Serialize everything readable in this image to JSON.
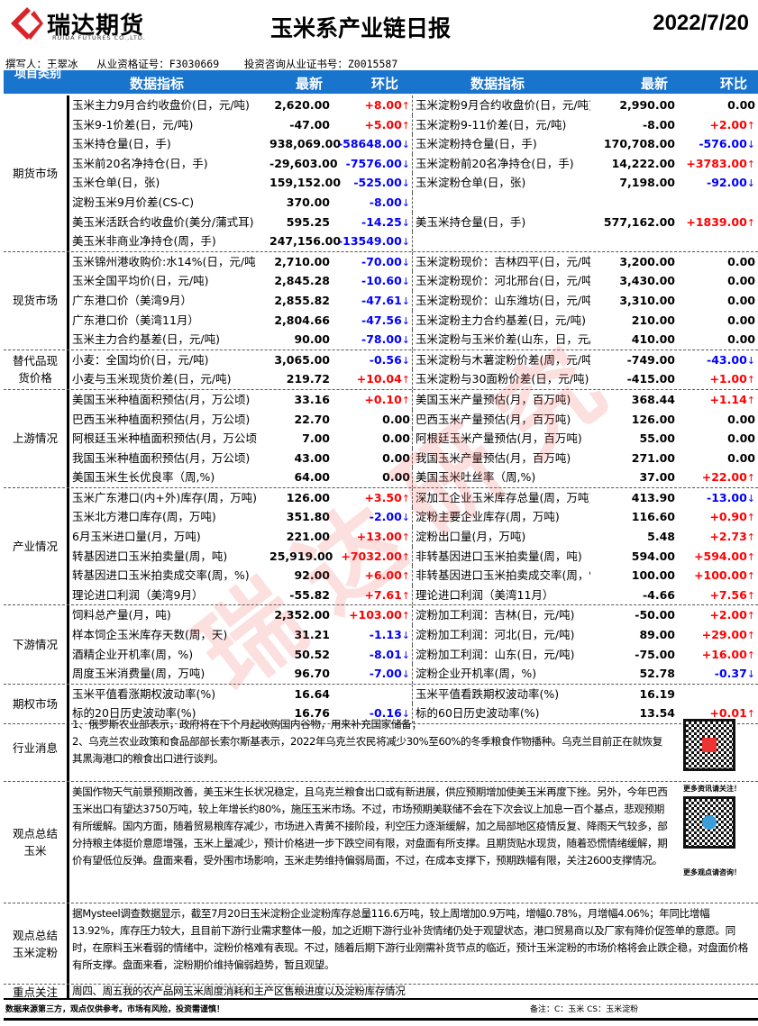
{
  "header": {
    "brand": "瑞达期货",
    "brand_en": "RUIDA FUTURES CO.,LTD.",
    "title": "玉米系产业链日报",
    "date": "2022/7/20",
    "watermark": "瑞达研究"
  },
  "author_line": "撰写人：王翠冰   从业资格证号：F3030669    投资咨询从业证书号：Z0015587",
  "table_header": {
    "category": "项目类别",
    "indicator": "数据指标",
    "latest": "最新",
    "change": "环比"
  },
  "colors": {
    "header_bg": "#1874cd",
    "up": "#ff0000",
    "down": "#0000ff"
  },
  "sections": [
    {
      "name": "期货市场",
      "rows": [
        [
          [
            "玉米主力9月合约收盘价(日，元/吨)",
            "2,620.00",
            "+8.00",
            "up"
          ],
          [
            "玉米淀粉9月合约收盘价(日，元/吨)",
            "2,990.00",
            "0.00",
            "none"
          ]
        ],
        [
          [
            "玉米9-1价差(日，元/吨)",
            "-47.00",
            "+5.00",
            "up"
          ],
          [
            "玉米淀粉9-11价差(日，元/吨)",
            "-8.00",
            "+2.00",
            "up"
          ]
        ],
        [
          [
            "玉米持仓量(日，手)",
            "938,069.00",
            "-58648.00",
            "down"
          ],
          [
            "玉米淀粉持仓量(日，手)",
            "170,708.00",
            "-576.00",
            "down"
          ]
        ],
        [
          [
            "玉米前20名净持仓(日，手)",
            "-29,603.00",
            "-7576.00",
            "down"
          ],
          [
            "玉米淀粉前20名净持仓(日，手)",
            "14,222.00",
            "+3783.00",
            "up"
          ]
        ],
        [
          [
            "玉米仓单(日，张)",
            "159,152.00",
            "-525.00",
            "down"
          ],
          [
            "玉米淀粉仓单(日，张)",
            "7,198.00",
            "-92.00",
            "down"
          ]
        ],
        [
          [
            "淀粉玉米9月价差(CS-C)",
            "370.00",
            "-8.00",
            "down"
          ],
          [
            "",
            "",
            "",
            ""
          ]
        ],
        [
          [
            "美玉米活跃合约收盘价(美分/蒲式耳)",
            "595.25",
            "-14.25",
            "down"
          ],
          [
            "美玉米持仓量(日，手)",
            "577,162.00",
            "+1839.00",
            "up"
          ]
        ],
        [
          [
            "美玉米非商业净持仓(周，手)",
            "247,156.00",
            "-13549.00",
            "down"
          ],
          [
            "",
            "",
            "",
            ""
          ]
        ]
      ]
    },
    {
      "name": "现货市场",
      "rows": [
        [
          [
            "玉米锦州港收购价:水14%(日，元/吨",
            "2,710.00",
            "-70.00",
            "down"
          ],
          [
            "玉米淀粉现价：吉林四平(日，元/吨)",
            "3,200.00",
            "0.00",
            "none"
          ]
        ],
        [
          [
            "玉米全国平均价(日，元/吨)",
            "2,845.28",
            "-10.60",
            "down"
          ],
          [
            "玉米淀粉现价：河北邢台(日，元/吨)",
            "3,430.00",
            "0.00",
            "none"
          ]
        ],
        [
          [
            "广东港口价（美湾9月）",
            "2,855.82",
            "-47.61",
            "down"
          ],
          [
            "玉米淀粉现价：山东潍坊(日，元/吨)",
            "3,310.00",
            "0.00",
            "none"
          ]
        ],
        [
          [
            "广东港口价（美湾11月）",
            "2,804.66",
            "-47.56",
            "down"
          ],
          [
            "玉米淀粉主力合约基差(日，元/吨)",
            "210.00",
            "0.00",
            "none"
          ]
        ],
        [
          [
            "玉米主力合约基差(日，元/吨)",
            "90.00",
            "-78.00",
            "down"
          ],
          [
            "玉米淀粉与玉米价差(山东，日，元/吨",
            "410.00",
            "0.00",
            "none"
          ]
        ]
      ]
    },
    {
      "name": "替代品现货价格",
      "rows": [
        [
          [
            "小麦：全国均价(日，元/吨)",
            "3,065.00",
            "-0.56",
            "down"
          ],
          [
            "玉米淀粉与木薯淀粉价差(周，元/吨)",
            "-749.00",
            "-43.00",
            "down"
          ]
        ],
        [
          [
            "小麦与玉米现货价差(日，元/吨)",
            "219.72",
            "+10.04",
            "up"
          ],
          [
            "玉米淀粉与30面粉价差(日，元/吨)",
            "-415.00",
            "+1.00",
            "up"
          ]
        ]
      ]
    },
    {
      "name": "上游情况",
      "rows": [
        [
          [
            "美国玉米种植面积预估(月，万公顷)",
            "33.16",
            "+0.10",
            "up"
          ],
          [
            "美国玉米产量预估(月，百万吨)",
            "368.44",
            "+1.14",
            "up"
          ]
        ],
        [
          [
            "巴西玉米种植面积预估(月，万公顷)",
            "22.70",
            "0.00",
            "none"
          ],
          [
            "巴西玉米产量预估(月，百万吨)",
            "126.00",
            "0.00",
            "none"
          ]
        ],
        [
          [
            "阿根廷玉米种植面积预估(月，万公顷",
            "7.00",
            "0.00",
            "none"
          ],
          [
            "阿根廷玉米产量预估(月，百万吨)",
            "55.00",
            "0.00",
            "none"
          ]
        ],
        [
          [
            "我国玉米种植面积预估(月，万公顷)",
            "43.00",
            "0.00",
            "none"
          ],
          [
            "我国玉米产量预估(月，百万吨)",
            "271.00",
            "0.00",
            "none"
          ]
        ],
        [
          [
            "美国玉米生长优良率（周,%)",
            "64.00",
            "0.00",
            "none"
          ],
          [
            "美国玉米吐丝率（周,%)",
            "37.00",
            "+22.00",
            "up"
          ]
        ]
      ]
    },
    {
      "name": "产业情况",
      "rows": [
        [
          [
            "玉米广东港口(内+外)库存(周，万吨)",
            "126.00",
            "+3.50",
            "up"
          ],
          [
            "深加工企业玉米库存总量(周，万吨)",
            "413.90",
            "-13.00",
            "down"
          ]
        ],
        [
          [
            "玉米北方港口库存(周，万吨)",
            "351.80",
            "-2.00",
            "down"
          ],
          [
            "淀粉主要企业库存(周，万吨)",
            "116.60",
            "+0.90",
            "up"
          ]
        ],
        [
          [
            "6月玉米进口量(月，万吨)",
            "221.00",
            "+13.00",
            "up"
          ],
          [
            "淀粉出口量(月，万吨)",
            "5.48",
            "+2.73",
            "up"
          ]
        ],
        [
          [
            "转基因进口玉米拍卖量(周，吨)",
            "25,919.00",
            "+7032.00",
            "up"
          ],
          [
            "非转基因进口玉米拍卖量(周，吨)",
            "594.00",
            "+594.00",
            "up"
          ]
        ],
        [
          [
            "转基因进口玉米拍卖成交率(周，%)",
            "92.00",
            "+6.00",
            "up"
          ],
          [
            "非转基因进口玉米拍卖成交率(周，%)",
            "100.00",
            "+100.00",
            "up"
          ]
        ],
        [
          [
            "理论进口利润（美湾9月）",
            "-55.82",
            "+7.61",
            "up"
          ],
          [
            "理论进口利润（美湾11月）",
            "-4.66",
            "+7.56",
            "up"
          ]
        ]
      ]
    },
    {
      "name": "下游情况",
      "rows": [
        [
          [
            "饲料总产量(月，吨)",
            "2,352.00",
            "+103.00",
            "up"
          ],
          [
            "淀粉加工利润：吉林(日，元/吨)",
            "-50.00",
            "+2.00",
            "up"
          ]
        ],
        [
          [
            "样本饲企玉米库存天数(周，天)",
            "31.21",
            "-1.13",
            "down"
          ],
          [
            "淀粉加工利润：河北(日，元/吨)",
            "89.00",
            "+29.00",
            "up"
          ]
        ],
        [
          [
            "酒精企业开机率(周，%)",
            "50.52",
            "-8.01",
            "down"
          ],
          [
            "淀粉加工利润：山东(日，元/吨)",
            "-75.00",
            "+16.00",
            "up"
          ]
        ],
        [
          [
            "周度玉米消费量(周，万吨)",
            "96.70",
            "-7.00",
            "down"
          ],
          [
            "淀粉企业开机率(周，%)",
            "52.78",
            "-0.37",
            "down"
          ]
        ]
      ]
    },
    {
      "name": "期权市场",
      "rows": [
        [
          [
            "玉米平值看涨期权波动率(%)",
            "16.64",
            "",
            ""
          ],
          [
            "玉米平值看跌期权波动率(%)",
            "16.19",
            "",
            ""
          ]
        ],
        [
          [
            "标的20日历史波动率(%)",
            "16.76",
            "-0.16",
            "down"
          ],
          [
            "标的60日历史波动率(%)",
            "13.54",
            "+0.01",
            "up"
          ]
        ]
      ]
    }
  ],
  "news": {
    "name": "行业消息",
    "text": "1、俄罗斯农业部表示，政府将在下个月起收购国内谷物，用来补充国家储备；\n2、乌克兰农业政策和食品部部长索尔斯基表示，2022年乌克兰农民将减少30%至60%的冬季粮食作物播种。乌克兰目前正在就恢复其黑海港口的粮食出口进行谈判。"
  },
  "corn_view": {
    "name": "观点总结玉米",
    "text": "美国作物天气前景预期改善，美玉米生长状况稳定，且乌克兰粮食出口或有新进展，供应预期增加使美玉米再度下挫。另外，今年巴西玉米出口有望达3750万吨，较上年增长约80%，施压玉米市场。不过，市场预期美联储不会在下次会议上加息一百个基点，悲观预期有所缓解。国内方面，随着贸易粮库存减少，市场进入青黄不接阶段，利空压力逐渐缓解，加之局部地区疫情反复、降雨天气较多，部分持粮主体挺价意愿增强，玉米上量减少，预计价格进一步下跌空间有限，对盘面有所支撑。且期货贴水现货，随着恐慌情绪缓解，期价有望低位反弹。盘面来看，受外围市场影响，玉米走势维持偏弱局面，不过，在成本支撑下，预期跌幅有限，关注2600支撑情况。"
  },
  "starch_view": {
    "name": "观点总结玉米淀粉",
    "text": "据Mysteel调查数据显示，截至7月20日玉米淀粉企业淀粉库存总量116.6万吨，较上周增加0.9万吨，增幅0.78%，月增幅4.06%；年同比增幅13.92%，库存压力较大，且目前下游行业需求整体一般，加之近期下游行业补货情绪仍处于观望状态，港口贸易商以及厂家有降价促签单的意愿。同时，在原料玉米看弱的情绪中，淀粉价格难有表现。不过，随着后期下游行业刚需补货节点的临近，预计玉米淀粉的市场价格将会止跌企稳，对盘面价格有所支撑。盘面来看，淀粉期价维持偏弱趋势，暂且观望。"
  },
  "focus": {
    "name": "重点关注",
    "text": "周四、周五我的农产品网玉米周度消耗和主产区售粮进度以及淀粉库存情况"
  },
  "qr": {
    "label1": "更多资讯请关注！",
    "label2": "更多观点请咨询！"
  },
  "footer": {
    "disclaimer": "数据来源第三方，观点仅供参考。市场有风险，投资需谨慎！",
    "note": "备注：C：玉米    CS：玉米淀粉"
  }
}
